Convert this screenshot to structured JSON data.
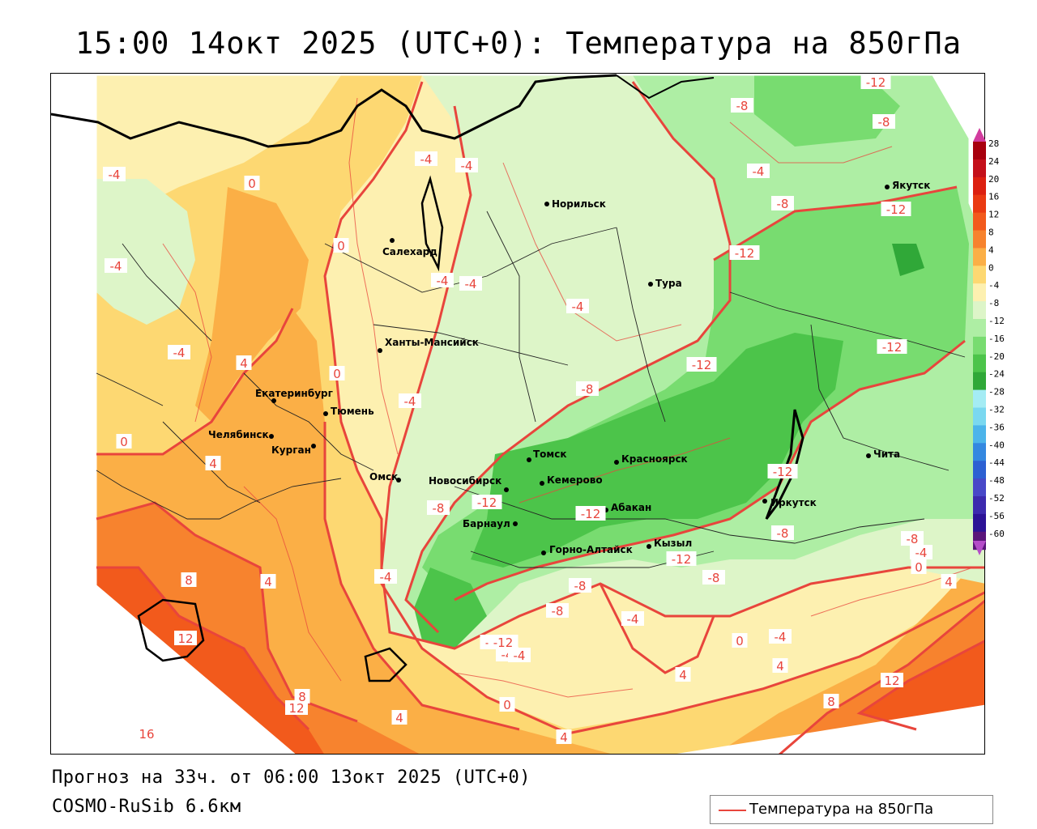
{
  "title": "15:00 14окт 2025 (UTC+0): Температура на 850гПа",
  "forecast_info": "Прогноз на 33ч. от 06:00 13окт 2025 (UTC+0)",
  "model_name": "COSMO-RuSib 6.6км",
  "legend": {
    "label": "Температура на 850гПа",
    "line_color": "#e8453c"
  },
  "colorbar": {
    "labels": [
      "28",
      "24",
      "20",
      "16",
      "12",
      "8",
      "4",
      "0",
      "-4",
      "-8",
      "-12",
      "-16",
      "-20",
      "-24",
      "-28",
      "-32",
      "-36",
      "-40",
      "-44",
      "-48",
      "-52",
      "-56",
      "-60"
    ],
    "colors": [
      "#a8000e",
      "#c4101a",
      "#dc2010",
      "#ea3a12",
      "#f25a1c",
      "#f7832e",
      "#fbaf46",
      "#fdd872",
      "#fdf0b0",
      "#ddf5c8",
      "#aeeea4",
      "#78dc70",
      "#4cc44a",
      "#30a838",
      "#a4ecf4",
      "#7ad8f0",
      "#4cb4ea",
      "#3488e0",
      "#2c60d2",
      "#4848c8",
      "#3c2aae",
      "#2c1296",
      "#5a147a"
    ],
    "top_arrow_color": "#d23c9e",
    "bottom_arrow_color": "#b44cc8"
  },
  "cities": [
    {
      "name": "Норильск"
    },
    {
      "name": "Салехард"
    },
    {
      "name": "Тура"
    },
    {
      "name": "Якутск"
    },
    {
      "name": "Ханты-Мансийск"
    },
    {
      "name": "Екатеринбург"
    },
    {
      "name": "Тюмень"
    },
    {
      "name": "Челябинск"
    },
    {
      "name": "Курган"
    },
    {
      "name": "Омск"
    },
    {
      "name": "Новосибирск"
    },
    {
      "name": "Томск"
    },
    {
      "name": "Кемерово"
    },
    {
      "name": "Красноярск"
    },
    {
      "name": "Абакан"
    },
    {
      "name": "Барнаул"
    },
    {
      "name": "Горно-Алтайск"
    },
    {
      "name": "Кызыл"
    },
    {
      "name": "Иркутск"
    },
    {
      "name": "Чита"
    }
  ],
  "isotherm_labels": [
    {
      "value": "-12"
    },
    {
      "value": "-8"
    },
    {
      "value": "-8"
    },
    {
      "value": "-4"
    },
    {
      "value": "-8"
    },
    {
      "value": "-12"
    },
    {
      "value": "-4"
    },
    {
      "value": "-4"
    },
    {
      "value": "-4"
    },
    {
      "value": "-12"
    },
    {
      "value": "-4"
    },
    {
      "value": "-12"
    },
    {
      "value": "-12"
    },
    {
      "value": "-8"
    },
    {
      "value": "-4"
    },
    {
      "value": "0"
    },
    {
      "value": "-4"
    },
    {
      "value": "-4"
    },
    {
      "value": "0"
    },
    {
      "value": "-4"
    },
    {
      "value": "0"
    },
    {
      "value": "-4"
    },
    {
      "value": "4"
    },
    {
      "value": "0"
    },
    {
      "value": "4"
    },
    {
      "value": "-8"
    },
    {
      "value": "-12"
    },
    {
      "value": "-12"
    },
    {
      "value": "-12"
    },
    {
      "value": "-8"
    },
    {
      "value": "-12"
    },
    {
      "value": "-8"
    },
    {
      "value": "-8"
    },
    {
      "value": "-4"
    },
    {
      "value": "0"
    },
    {
      "value": "4"
    },
    {
      "value": "-4"
    },
    {
      "value": "-8"
    },
    {
      "value": "-8"
    },
    {
      "value": "-4"
    },
    {
      "value": "-12"
    },
    {
      "value": "-4"
    },
    {
      "value": "0"
    },
    {
      "value": "-4"
    },
    {
      "value": "4"
    },
    {
      "value": "0"
    },
    {
      "value": "4"
    },
    {
      "value": "8"
    },
    {
      "value": "12"
    },
    {
      "value": "12"
    },
    {
      "value": "8"
    },
    {
      "value": "4"
    },
    {
      "value": "12"
    },
    {
      "value": "16"
    },
    {
      "value": "8"
    },
    {
      "value": "4"
    },
    {
      "value": "-4"
    },
    {
      "value": "0"
    },
    {
      "value": "4"
    },
    {
      "value": "-4"
    },
    {
      "value": "-12"
    },
    {
      "value": "-4"
    },
    {
      "value": "-8"
    },
    {
      "value": "0"
    }
  ]
}
